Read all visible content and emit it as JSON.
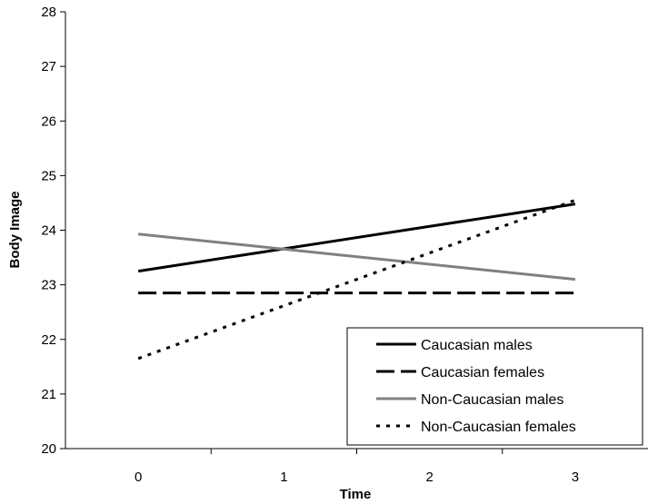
{
  "chart_data": {
    "type": "line",
    "title": "",
    "xlabel": "Time",
    "ylabel": "Body Image",
    "x": [
      0,
      3
    ],
    "xticks": [
      0,
      1,
      2,
      3
    ],
    "xlim": [
      -0.5,
      3.5
    ],
    "yticks": [
      20,
      21,
      22,
      23,
      24,
      25,
      26,
      27,
      28
    ],
    "ylim": [
      20,
      28
    ],
    "grid": false,
    "legend_position": "bottom-right",
    "series": [
      {
        "name": "Caucasian males",
        "values": [
          23.25,
          24.48
        ],
        "color": "#000000",
        "style": "solid"
      },
      {
        "name": "Caucasian females",
        "values": [
          22.85,
          22.85
        ],
        "color": "#000000",
        "style": "dashed"
      },
      {
        "name": "Non-Caucasian males",
        "values": [
          23.93,
          23.1
        ],
        "color": "#808080",
        "style": "solid"
      },
      {
        "name": "Non-Caucasian females",
        "values": [
          21.65,
          24.55
        ],
        "color": "#000000",
        "style": "dotted"
      }
    ]
  }
}
